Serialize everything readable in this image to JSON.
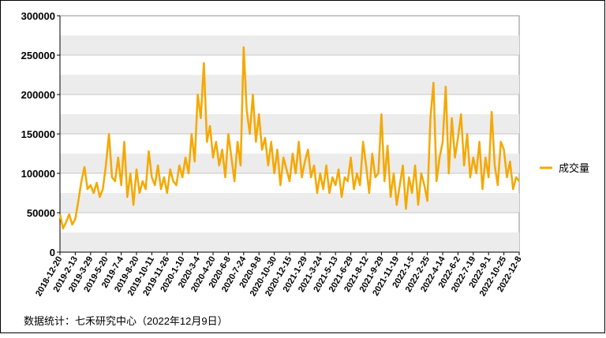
{
  "chart_data": {
    "type": "line",
    "footer": "数据统计：七禾研究中心（2022年12月9日）",
    "categories": [
      "2018-12-20",
      null,
      null,
      null,
      null,
      "2019-2-13",
      null,
      null,
      null,
      null,
      "2019-3-29",
      null,
      null,
      null,
      null,
      "2019-5-20",
      null,
      null,
      null,
      null,
      "2019-7-4",
      null,
      null,
      null,
      null,
      "2019-8-20",
      null,
      null,
      null,
      null,
      "2019-10-11",
      null,
      null,
      null,
      null,
      "2019-11-26",
      null,
      null,
      null,
      null,
      "2020-1-10",
      null,
      null,
      null,
      null,
      "2020-3-4",
      null,
      null,
      null,
      null,
      "2020-4-20",
      null,
      null,
      null,
      null,
      "2020-6-8",
      null,
      null,
      null,
      null,
      "2020-7-24",
      null,
      null,
      null,
      null,
      "2020-9-8",
      null,
      null,
      null,
      null,
      "2020-10-30",
      null,
      null,
      null,
      null,
      "2020-12-15",
      null,
      null,
      null,
      null,
      "2021-1-29",
      null,
      null,
      null,
      null,
      "2021-3-24",
      null,
      null,
      null,
      null,
      "2021-5-13",
      null,
      null,
      null,
      null,
      "2021-6-29",
      null,
      null,
      null,
      null,
      "2021-8-12",
      null,
      null,
      null,
      null,
      "2021-9-29",
      null,
      null,
      null,
      null,
      "2021-11-19",
      null,
      null,
      null,
      null,
      "2022-1-5",
      null,
      null,
      null,
      null,
      "2022-2-25",
      null,
      null,
      null,
      null,
      "2022-4-14",
      null,
      null,
      null,
      null,
      "2022-6-2",
      null,
      null,
      null,
      null,
      "2022-7-19",
      null,
      null,
      null,
      null,
      "2022-9-1",
      null,
      null,
      null,
      null,
      "2022-10-25",
      null,
      null,
      null,
      null,
      "2022-12-8"
    ],
    "series": [
      {
        "name": "成交量",
        "color": "#f5a800",
        "values": [
          48000,
          30000,
          38000,
          48000,
          35000,
          42000,
          65000,
          90000,
          108000,
          80000,
          85000,
          75000,
          88000,
          70000,
          80000,
          110000,
          150000,
          95000,
          90000,
          120000,
          85000,
          140000,
          70000,
          100000,
          60000,
          105000,
          75000,
          90000,
          80000,
          128000,
          95000,
          85000,
          110000,
          80000,
          95000,
          75000,
          105000,
          90000,
          85000,
          110000,
          95000,
          120000,
          100000,
          150000,
          115000,
          200000,
          170000,
          240000,
          140000,
          160000,
          120000,
          140000,
          110000,
          130000,
          95000,
          150000,
          120000,
          90000,
          140000,
          110000,
          260000,
          180000,
          150000,
          200000,
          140000,
          175000,
          130000,
          145000,
          110000,
          140000,
          100000,
          130000,
          85000,
          120000,
          105000,
          90000,
          125000,
          100000,
          140000,
          95000,
          115000,
          130000,
          95000,
          110000,
          75000,
          100000,
          80000,
          110000,
          75000,
          95000,
          85000,
          105000,
          70000,
          95000,
          90000,
          120000,
          80000,
          100000,
          85000,
          140000,
          110000,
          75000,
          125000,
          95000,
          100000,
          175000,
          90000,
          135000,
          70000,
          100000,
          60000,
          85000,
          110000,
          55000,
          95000,
          75000,
          110000,
          60000,
          100000,
          85000,
          65000,
          170000,
          215000,
          90000,
          120000,
          140000,
          210000,
          100000,
          170000,
          120000,
          145000,
          175000,
          110000,
          150000,
          95000,
          120000,
          100000,
          140000,
          80000,
          120000,
          95000,
          178000,
          110000,
          85000,
          140000,
          130000,
          95000,
          115000,
          80000,
          95000,
          90000
        ]
      }
    ],
    "ylim": [
      0,
      300000
    ],
    "yticks": [
      0,
      50000,
      100000,
      150000,
      200000,
      250000,
      300000
    ],
    "grid": true,
    "legend": "right"
  }
}
